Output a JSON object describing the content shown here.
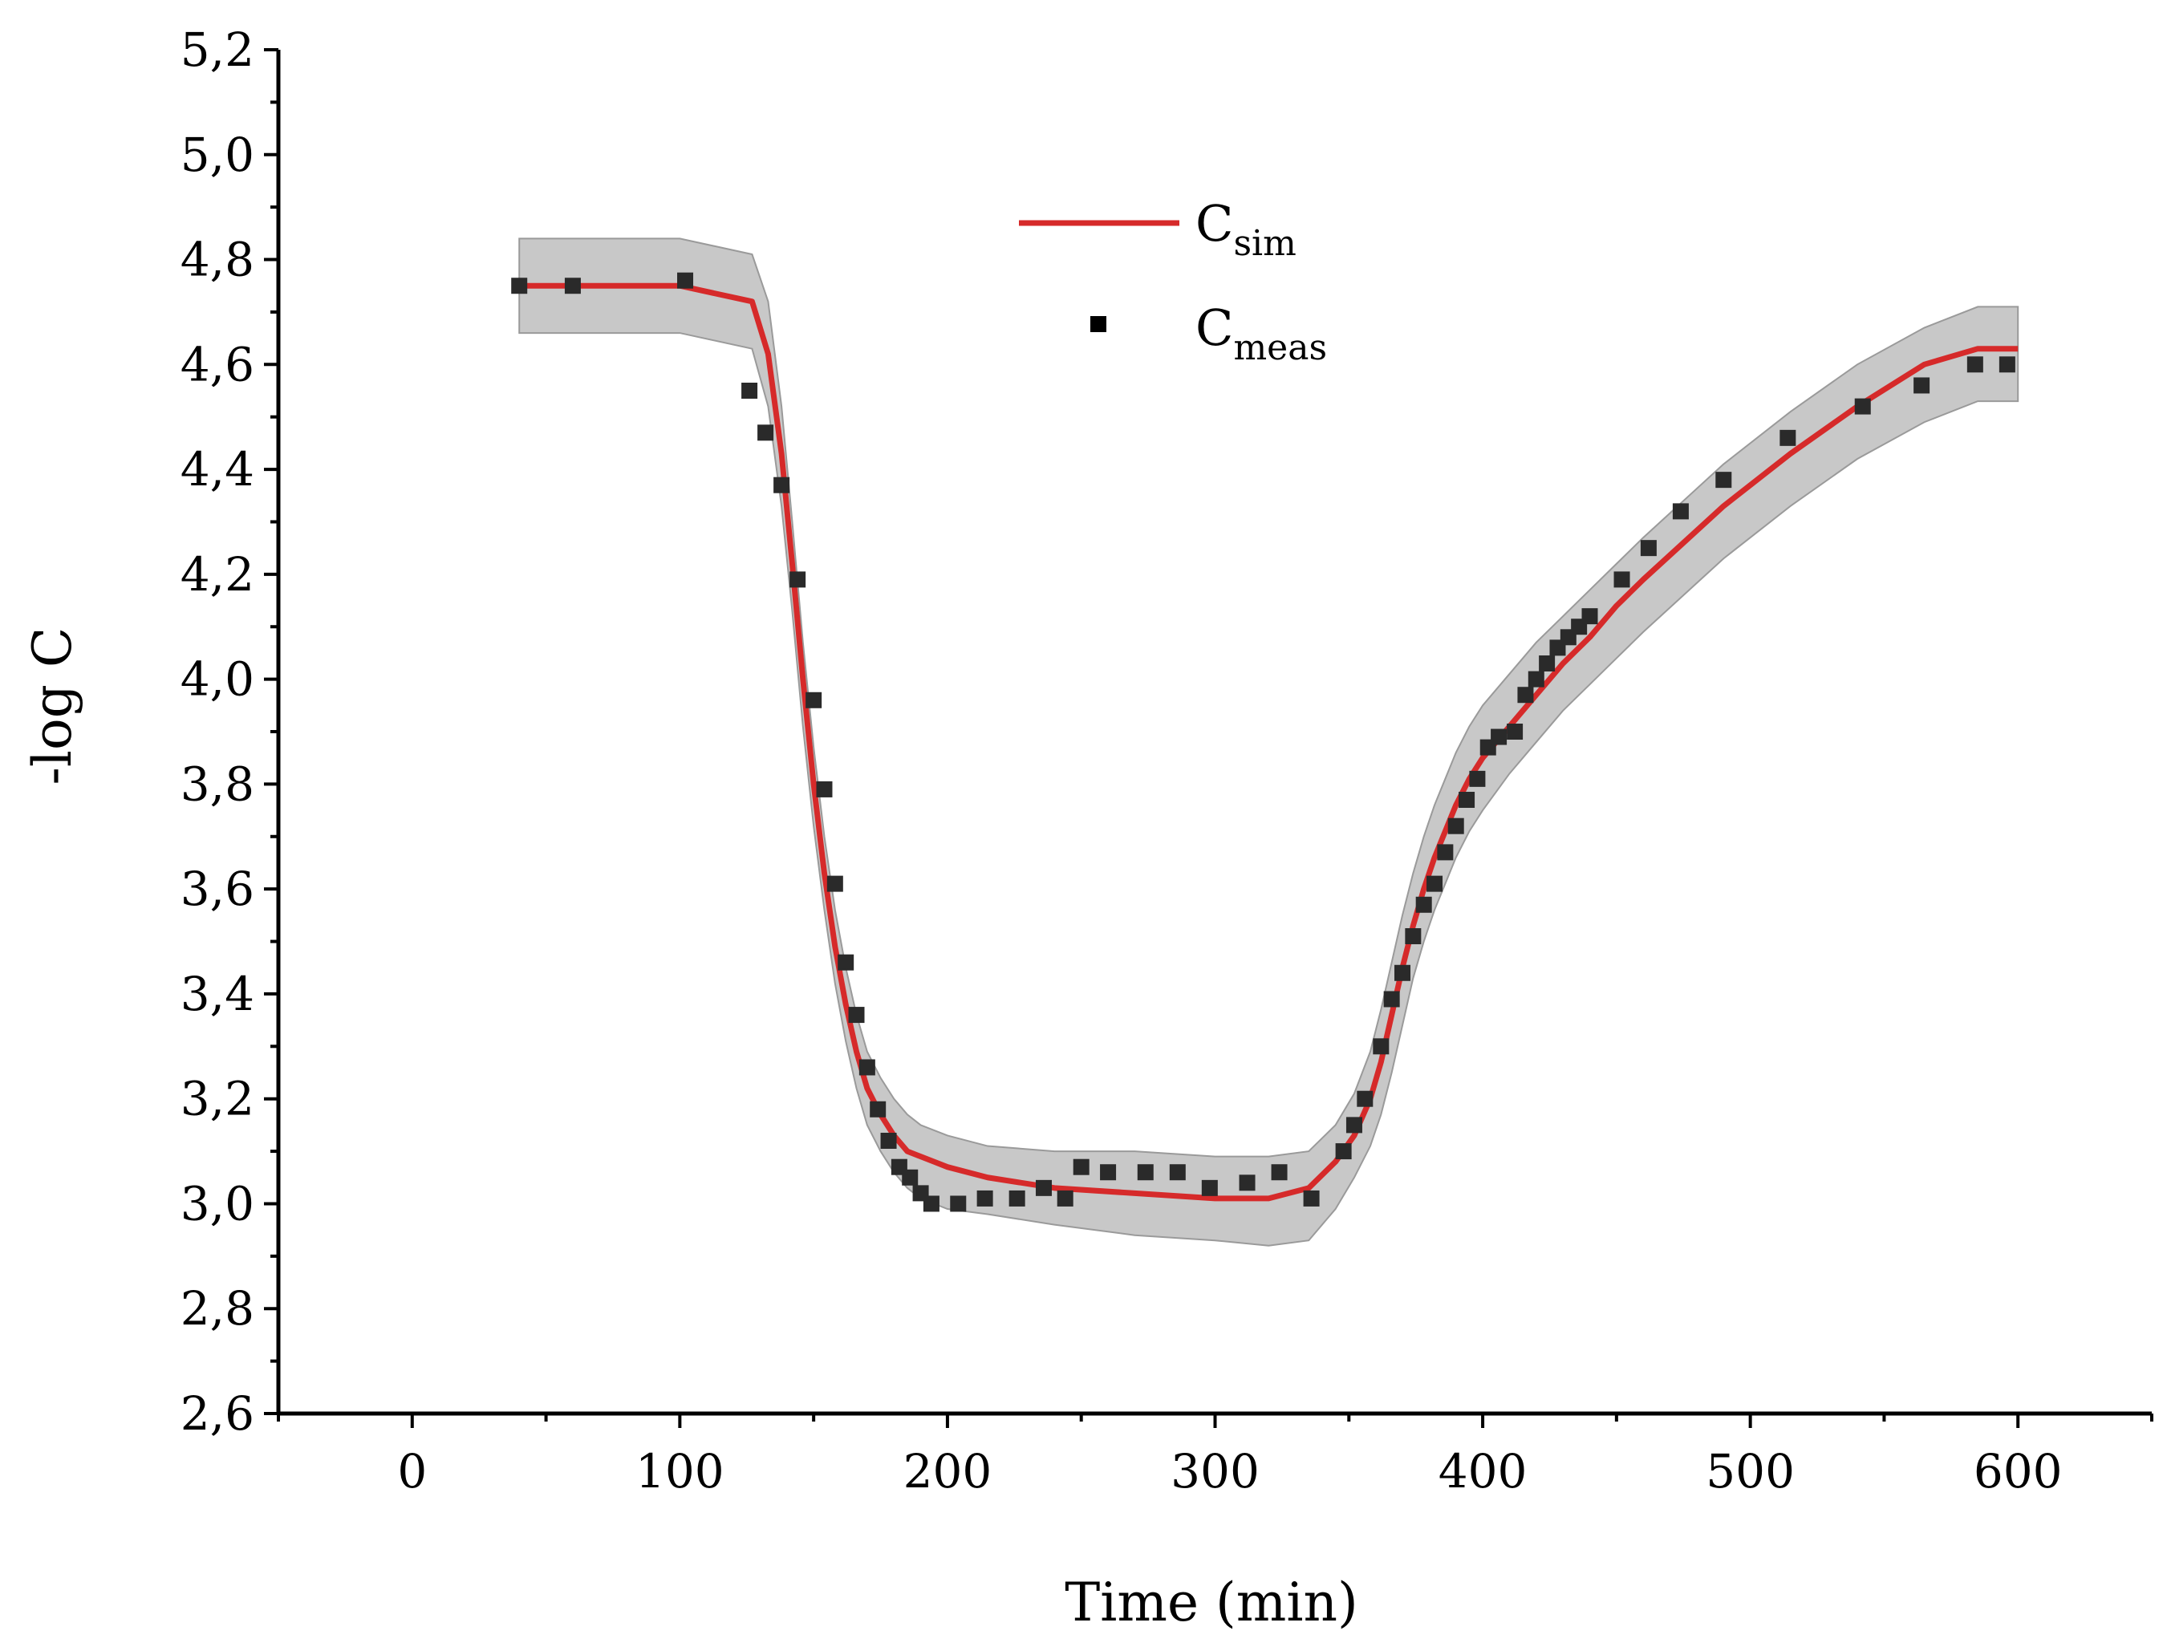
{
  "chart_data": {
    "type": "line",
    "title": "",
    "xlabel": "Time (min)",
    "ylabel": "-log C",
    "xlim": [
      -50,
      650
    ],
    "ylim": [
      2.6,
      5.2
    ],
    "x_ticks": [
      0,
      100,
      200,
      300,
      400,
      500,
      600
    ],
    "x_tick_labels": [
      "0",
      "100",
      "200",
      "300",
      "400",
      "500",
      "600"
    ],
    "y_ticks": [
      2.6,
      2.8,
      3.0,
      3.2,
      3.4,
      3.6,
      3.8,
      4.0,
      4.2,
      4.4,
      4.6,
      4.8,
      5.0,
      5.2
    ],
    "y_tick_labels": [
      "2,6",
      "2,8",
      "3,0",
      "3,2",
      "3,4",
      "3,6",
      "3,8",
      "4,0",
      "4,2",
      "4,4",
      "4,6",
      "4,8",
      "5,0",
      "5,2"
    ],
    "grid": false,
    "legend": {
      "position": "top-center",
      "entries": [
        {
          "main": "C",
          "sub": "sim",
          "marker": "line"
        },
        {
          "main": "C",
          "sub": "meas",
          "marker": "square"
        }
      ]
    },
    "colors": {
      "sim_line": "#d62a2a",
      "band_fill": "#c8c8c8",
      "band_edge": "#9a9a9a",
      "marker": "#2a2a2a",
      "axis": "#000000"
    },
    "series": [
      {
        "name": "C_sim",
        "kind": "line",
        "x": [
          40,
          60,
          100,
          127,
          133,
          138,
          142,
          146,
          150,
          154,
          158,
          162,
          166,
          170,
          175,
          180,
          185,
          190,
          195,
          200,
          215,
          240,
          270,
          300,
          320,
          335,
          345,
          352,
          358,
          362,
          366,
          370,
          374,
          378,
          382,
          386,
          390,
          395,
          400,
          410,
          420,
          430,
          440,
          450,
          460,
          475,
          490,
          515,
          540,
          565,
          585,
          600
        ],
        "values": [
          4.75,
          4.75,
          4.75,
          4.72,
          4.62,
          4.43,
          4.22,
          4.0,
          3.8,
          3.63,
          3.49,
          3.38,
          3.29,
          3.22,
          3.17,
          3.13,
          3.1,
          3.09,
          3.08,
          3.07,
          3.05,
          3.03,
          3.02,
          3.01,
          3.01,
          3.03,
          3.08,
          3.13,
          3.2,
          3.27,
          3.36,
          3.45,
          3.53,
          3.6,
          3.66,
          3.71,
          3.76,
          3.81,
          3.85,
          3.91,
          3.97,
          4.03,
          4.08,
          4.14,
          4.19,
          4.26,
          4.33,
          4.43,
          4.52,
          4.6,
          4.63,
          4.63
        ]
      },
      {
        "name": "uncertainty_band",
        "kind": "band",
        "x": [
          40,
          60,
          100,
          127,
          133,
          138,
          142,
          146,
          150,
          154,
          158,
          162,
          166,
          170,
          175,
          180,
          185,
          190,
          195,
          200,
          215,
          240,
          270,
          300,
          320,
          335,
          345,
          352,
          358,
          362,
          366,
          370,
          374,
          378,
          382,
          386,
          390,
          395,
          400,
          410,
          420,
          430,
          440,
          450,
          460,
          475,
          490,
          515,
          540,
          565,
          585,
          600
        ],
        "upper": [
          4.84,
          4.84,
          4.84,
          4.81,
          4.72,
          4.52,
          4.3,
          4.07,
          3.87,
          3.7,
          3.56,
          3.45,
          3.36,
          3.29,
          3.24,
          3.2,
          3.17,
          3.15,
          3.14,
          3.13,
          3.11,
          3.1,
          3.1,
          3.09,
          3.09,
          3.1,
          3.15,
          3.21,
          3.29,
          3.37,
          3.46,
          3.55,
          3.63,
          3.7,
          3.76,
          3.81,
          3.86,
          3.91,
          3.95,
          4.01,
          4.07,
          4.12,
          4.17,
          4.22,
          4.27,
          4.34,
          4.41,
          4.51,
          4.6,
          4.67,
          4.71,
          4.71
        ],
        "lower": [
          4.66,
          4.66,
          4.66,
          4.63,
          4.52,
          4.33,
          4.13,
          3.91,
          3.72,
          3.56,
          3.42,
          3.31,
          3.22,
          3.15,
          3.1,
          3.06,
          3.03,
          3.01,
          3.0,
          2.99,
          2.98,
          2.96,
          2.94,
          2.93,
          2.92,
          2.93,
          2.99,
          3.05,
          3.11,
          3.17,
          3.25,
          3.34,
          3.43,
          3.5,
          3.56,
          3.61,
          3.66,
          3.71,
          3.75,
          3.82,
          3.88,
          3.94,
          3.99,
          4.04,
          4.09,
          4.16,
          4.23,
          4.33,
          4.42,
          4.49,
          4.53,
          4.53
        ]
      },
      {
        "name": "C_meas",
        "kind": "scatter",
        "x": [
          40,
          60,
          102,
          126,
          132,
          138,
          144,
          150,
          154,
          158,
          162,
          166,
          170,
          174,
          178,
          182,
          186,
          190,
          194,
          204,
          214,
          226,
          236,
          244,
          250,
          260,
          274,
          286,
          298,
          312,
          324,
          336,
          348,
          352,
          356,
          362,
          366,
          370,
          374,
          378,
          382,
          386,
          390,
          394,
          398,
          402,
          406,
          412,
          416,
          420,
          424,
          428,
          432,
          436,
          440,
          452,
          462,
          474,
          490,
          514,
          542,
          564,
          584,
          596
        ],
        "values": [
          4.75,
          4.75,
          4.76,
          4.55,
          4.47,
          4.37,
          4.19,
          3.96,
          3.79,
          3.61,
          3.46,
          3.36,
          3.26,
          3.18,
          3.12,
          3.07,
          3.05,
          3.02,
          3.0,
          3.0,
          3.01,
          3.01,
          3.03,
          3.01,
          3.07,
          3.06,
          3.06,
          3.06,
          3.03,
          3.04,
          3.06,
          3.01,
          3.1,
          3.15,
          3.2,
          3.3,
          3.39,
          3.44,
          3.51,
          3.57,
          3.61,
          3.67,
          3.72,
          3.77,
          3.81,
          3.87,
          3.89,
          3.9,
          3.97,
          4.0,
          4.03,
          4.06,
          4.08,
          4.1,
          4.12,
          4.19,
          4.25,
          4.32,
          4.38,
          4.46,
          4.52,
          4.56,
          4.6,
          4.6
        ]
      }
    ]
  }
}
